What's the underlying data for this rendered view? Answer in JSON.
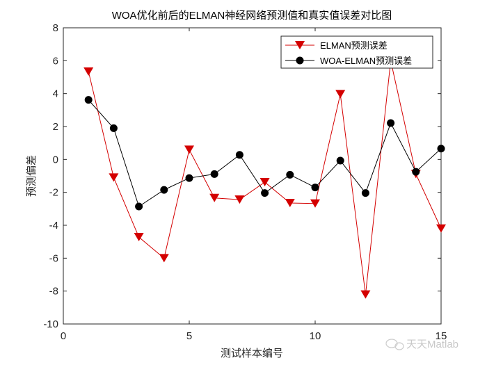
{
  "chart_data": {
    "type": "line",
    "title": "WOA优化前后的ELMAN神经网络预测值和真实值误差对比图",
    "xlabel": "测试样本编号",
    "ylabel": "预测偏差",
    "xlim": [
      0,
      15
    ],
    "ylim": [
      -10,
      8
    ],
    "xticks": [
      0,
      5,
      10,
      15
    ],
    "yticks": [
      -10,
      -8,
      -6,
      -4,
      -2,
      0,
      2,
      4,
      6,
      8
    ],
    "grid": false,
    "legend_position": "top-right",
    "x": [
      1,
      2,
      3,
      4,
      5,
      6,
      7,
      8,
      9,
      10,
      11,
      12,
      13,
      14,
      15
    ],
    "series": [
      {
        "name": "ELMAN预测误差",
        "color": "#d40000",
        "marker": "triangle-down",
        "values": [
          5.34,
          -1.1,
          -4.72,
          -6.0,
          0.59,
          -2.34,
          -2.44,
          -1.38,
          -2.65,
          -2.68,
          3.97,
          -8.21,
          6.0,
          -0.89,
          -4.2
        ]
      },
      {
        "name": "WOA-ELMAN预测误差",
        "color": "#000000",
        "marker": "circle",
        "values": [
          3.62,
          1.9,
          -2.86,
          -1.85,
          -1.13,
          -0.89,
          0.28,
          -2.04,
          -0.93,
          -1.7,
          -0.07,
          -2.04,
          2.21,
          -0.75,
          0.66
        ]
      }
    ]
  },
  "watermark": "天天Matlab"
}
